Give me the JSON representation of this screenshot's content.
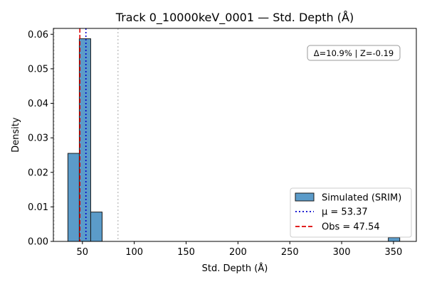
{
  "chart_data": {
    "type": "bar",
    "title": "Track 0_10000keV_0001 — Std. Depth (Å)",
    "xlabel": "Std. Depth (Å)",
    "ylabel": "Density",
    "xlim": [
      22,
      372
    ],
    "ylim": [
      0,
      0.0617
    ],
    "xticks": [
      50,
      100,
      150,
      200,
      250,
      300,
      350
    ],
    "yticks": [
      0.0,
      0.01,
      0.02,
      0.03,
      0.04,
      0.05,
      0.06
    ],
    "ytick_labels": [
      "0.00",
      "0.01",
      "0.02",
      "0.03",
      "0.04",
      "0.05",
      "0.06"
    ],
    "bins": [
      {
        "x0": 36,
        "x1": 47,
        "density": 0.0255
      },
      {
        "x0": 47,
        "x1": 58,
        "density": 0.0587
      },
      {
        "x0": 58,
        "x1": 69,
        "density": 0.0085
      },
      {
        "x0": 345,
        "x1": 356,
        "density": 0.0011
      }
    ],
    "lines": {
      "mean": {
        "x": 53.37,
        "color": "#0000cc",
        "style": "dotted"
      },
      "observed": {
        "x": 47.54,
        "color": "#dd0000",
        "style": "dashed"
      },
      "interval_low": {
        "x": 22.5,
        "color": "#bbbbbb",
        "style": "dotted"
      },
      "interval_high": {
        "x": 84.3,
        "color": "#bbbbbb",
        "style": "dotted"
      }
    },
    "legend": {
      "placement": "lower-right",
      "entries": [
        "Simulated (SRIM)",
        "μ = 53.37",
        "Obs = 47.54"
      ]
    },
    "annotation": "Δ=10.9% | Z=-0.19",
    "grid": false,
    "bar_color": "#5b9bc9"
  }
}
